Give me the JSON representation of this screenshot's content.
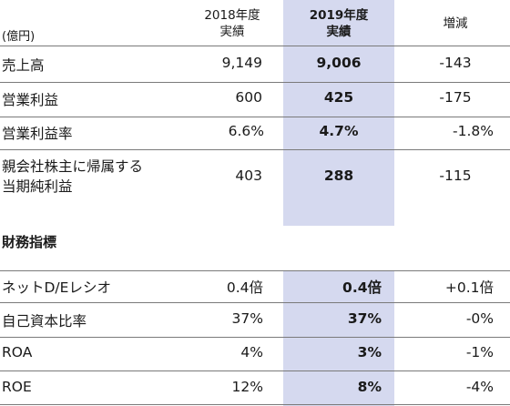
{
  "header": {
    "unit": "(億円)",
    "col2018_line1": "2018年度",
    "col2018_line2": "実績",
    "col2019_line1": "2019年度",
    "col2019_line2": "実績",
    "col_change": "増減"
  },
  "rows": [
    {
      "label": "売上高",
      "v2018": "9,149",
      "v2019": "9,006",
      "change": "-143"
    },
    {
      "label": "営業利益",
      "v2018": "600",
      "v2019": "425",
      "change": "-175"
    },
    {
      "label": "営業利益率",
      "v2018": "6.6%",
      "v2019": "4.7%",
      "change": "-1.8%"
    },
    {
      "label_line1": "親会社株主に帰属する",
      "label_line2": "当期純利益",
      "v2018": "403",
      "v2019": "288",
      "change": "-115"
    }
  ],
  "section_title": "財務指標",
  "metrics": [
    {
      "label": "ネットD/Eレシオ",
      "v2018": "0.4倍",
      "v2019": "0.4倍",
      "change": "+0.1倍"
    },
    {
      "label": "自己資本比率",
      "v2018": "37%",
      "v2019": "37%",
      "change": "-0%"
    },
    {
      "label": "ROA",
      "v2018": "4%",
      "v2019": "3%",
      "change": "-1%"
    },
    {
      "label": "ROE",
      "v2018": "12%",
      "v2019": "8%",
      "change": "-4%"
    }
  ]
}
